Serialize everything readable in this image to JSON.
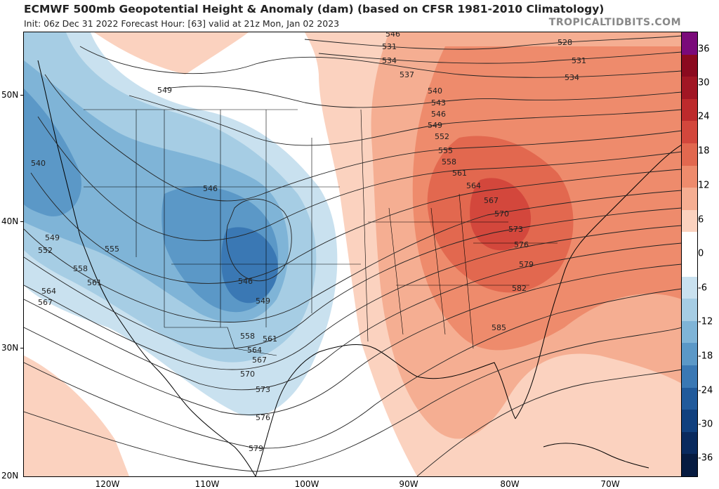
{
  "header": {
    "title": "ECMWF 500mb Geopotential Height & Anomaly (dam) (based on CFSR 1981-2010 Climatology)",
    "subtitle": "Init: 06z Dec 31 2022   Forecast Hour: [63]   valid at 21z Mon, Jan 02 2023",
    "brand": "TROPICALTIDBITS.COM"
  },
  "axes": {
    "lat_labels": [
      "50N",
      "40N",
      "30N",
      "20N"
    ],
    "lon_labels": [
      "120W",
      "110W",
      "100W",
      "90W",
      "80W",
      "70W"
    ]
  },
  "colorbar": {
    "ticks": [
      "36",
      "30",
      "24",
      "18",
      "12",
      "6",
      "0",
      "-6",
      "-12",
      "-18",
      "-24",
      "-30",
      "-36"
    ],
    "colors": [
      "#7a0a7a",
      "#8b0a1f",
      "#a11624",
      "#bd2a2c",
      "#d3473c",
      "#e2684f",
      "#ee8b6c",
      "#f5ae92",
      "#fbd2bf",
      "#ffffff",
      "#ffffff",
      "#c9e1ef",
      "#a6cde4",
      "#7fb4d7",
      "#5b98c7",
      "#3a78b4",
      "#215a9b",
      "#11407e",
      "#0a2a5e",
      "#071b40"
    ]
  },
  "contour_labels": [
    "528",
    "531",
    "531",
    "534",
    "534",
    "537",
    "540",
    "540",
    "543",
    "546",
    "546",
    "546",
    "546",
    "549",
    "549",
    "549",
    "549",
    "552",
    "552",
    "555",
    "555",
    "558",
    "558",
    "558",
    "561",
    "561",
    "561",
    "564",
    "564",
    "564",
    "567",
    "567",
    "567",
    "570",
    "570",
    "573",
    "573",
    "576",
    "576",
    "579",
    "579",
    "582",
    "585"
  ]
}
